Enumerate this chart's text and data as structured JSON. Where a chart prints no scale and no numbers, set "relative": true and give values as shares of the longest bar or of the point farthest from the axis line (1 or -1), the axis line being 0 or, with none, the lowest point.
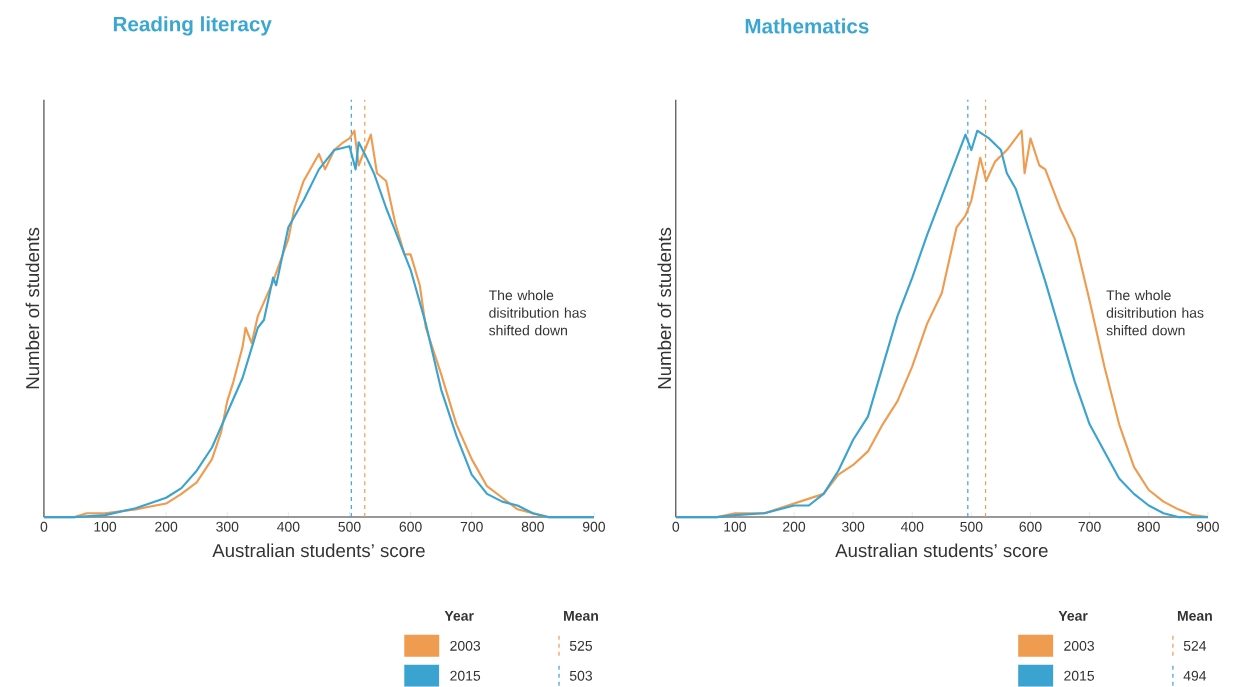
{
  "chart_data": [
    {
      "type": "line",
      "relative": true,
      "title": "Reading literacy",
      "xlabel": "Australian students’ score",
      "ylabel": "Number of students",
      "xlim": [
        0,
        900
      ],
      "xticks": [
        0,
        100,
        200,
        300,
        400,
        500,
        600,
        700,
        800,
        900
      ],
      "legend": "bottom right",
      "legend_title": "Year",
      "annotations": [
        "Mean",
        "The whole disitribution has shifted down"
      ],
      "series": [
        {
          "name": "2003",
          "color": "#ef9b50",
          "x": [
            0,
            50,
            70,
            100,
            150,
            200,
            225,
            250,
            275,
            290,
            300,
            310,
            325,
            330,
            340,
            350,
            375,
            400,
            410,
            425,
            450,
            460,
            475,
            490,
            500,
            508,
            515,
            525,
            535,
            545,
            560,
            575,
            590,
            600,
            615,
            625,
            650,
            675,
            700,
            725,
            750,
            775,
            800,
            825,
            900
          ],
          "values": [
            0,
            0,
            0.01,
            0.01,
            0.02,
            0.035,
            0.06,
            0.09,
            0.15,
            0.22,
            0.3,
            0.35,
            0.44,
            0.49,
            0.45,
            0.52,
            0.61,
            0.72,
            0.8,
            0.87,
            0.94,
            0.9,
            0.95,
            0.97,
            0.98,
            1,
            0.91,
            0.95,
            0.99,
            0.89,
            0.87,
            0.76,
            0.68,
            0.68,
            0.6,
            0.49,
            0.37,
            0.24,
            0.15,
            0.08,
            0.05,
            0.02,
            0.01,
            0,
            0
          ]
        },
        {
          "name": "2015",
          "color": "#3ba3d0",
          "x": [
            0,
            50,
            100,
            150,
            200,
            225,
            250,
            275,
            300,
            325,
            350,
            360,
            375,
            380,
            400,
            425,
            450,
            475,
            500,
            510,
            515,
            525,
            540,
            560,
            575,
            600,
            625,
            650,
            675,
            700,
            725,
            750,
            775,
            800,
            825,
            900
          ],
          "values": [
            0,
            0,
            0.005,
            0.023,
            0.05,
            0.075,
            0.12,
            0.18,
            0.27,
            0.36,
            0.49,
            0.51,
            0.62,
            0.6,
            0.75,
            0.82,
            0.9,
            0.95,
            0.96,
            0.9,
            0.97,
            0.94,
            0.89,
            0.8,
            0.74,
            0.64,
            0.5,
            0.33,
            0.21,
            0.11,
            0.06,
            0.04,
            0.03,
            0.01,
            0,
            0
          ]
        }
      ],
      "ref_lines": [
        {
          "axis": "x",
          "value": 525,
          "label": "525",
          "color": "#ef9b50",
          "line_style": "dashed"
        },
        {
          "axis": "x",
          "value": 503,
          "label": "503",
          "color": "#3ba3d0",
          "line_style": "dashed"
        }
      ]
    },
    {
      "type": "line",
      "relative": true,
      "title": "Mathematics",
      "xlabel": "Australian students’ score",
      "ylabel": "Number of students",
      "xlim": [
        0,
        900
      ],
      "xticks": [
        0,
        100,
        200,
        300,
        400,
        500,
        600,
        700,
        800,
        900
      ],
      "legend": "bottom right",
      "legend_title": "Year",
      "annotations": [
        "Mean",
        "The whole disitribution has shifted down"
      ],
      "series": [
        {
          "name": "2003",
          "color": "#ef9b50",
          "x": [
            0,
            70,
            100,
            150,
            200,
            225,
            250,
            275,
            300,
            325,
            350,
            375,
            400,
            425,
            450,
            475,
            490,
            500,
            515,
            525,
            540,
            560,
            575,
            585,
            590,
            600,
            615,
            625,
            650,
            675,
            700,
            725,
            750,
            775,
            800,
            825,
            850,
            875,
            900
          ],
          "values": [
            0,
            0,
            0.01,
            0.01,
            null,
            null,
            0.06,
            0.11,
            0.135,
            0.17,
            0.24,
            0.3,
            0.39,
            0.5,
            0.58,
            0.75,
            0.78,
            0.82,
            0.93,
            0.87,
            0.92,
            0.95,
            0.98,
            1,
            0.89,
            0.98,
            0.91,
            0.9,
            0.8,
            0.72,
            0.56,
            0.39,
            0.24,
            0.13,
            0.07,
            0.04,
            0.02,
            0.005,
            0
          ]
        },
        {
          "name": "2015",
          "color": "#3ba3d0",
          "x": [
            0,
            70,
            100,
            150,
            200,
            225,
            250,
            275,
            300,
            325,
            350,
            375,
            400,
            425,
            450,
            475,
            490,
            500,
            510,
            530,
            550,
            560,
            575,
            600,
            625,
            650,
            675,
            700,
            725,
            750,
            775,
            800,
            825,
            850,
            900
          ],
          "values": [
            0,
            0,
            0.005,
            0.01,
            0.03,
            0.03,
            0.06,
            0.12,
            0.2,
            0.26,
            0.39,
            0.52,
            0.62,
            0.73,
            0.83,
            0.93,
            0.99,
            0.95,
            1,
            0.98,
            0.95,
            0.89,
            0.85,
            0.73,
            0.61,
            0.48,
            0.35,
            0.24,
            0.17,
            0.1,
            0.06,
            0.03,
            0.01,
            0,
            0
          ]
        }
      ],
      "ref_lines": [
        {
          "axis": "x",
          "value": 524,
          "label": "524",
          "color": "#ef9b50",
          "line_style": "dashed"
        },
        {
          "axis": "x",
          "value": 494,
          "label": "494",
          "color": "#3ba3d0",
          "line_style": "dashed"
        }
      ]
    }
  ]
}
